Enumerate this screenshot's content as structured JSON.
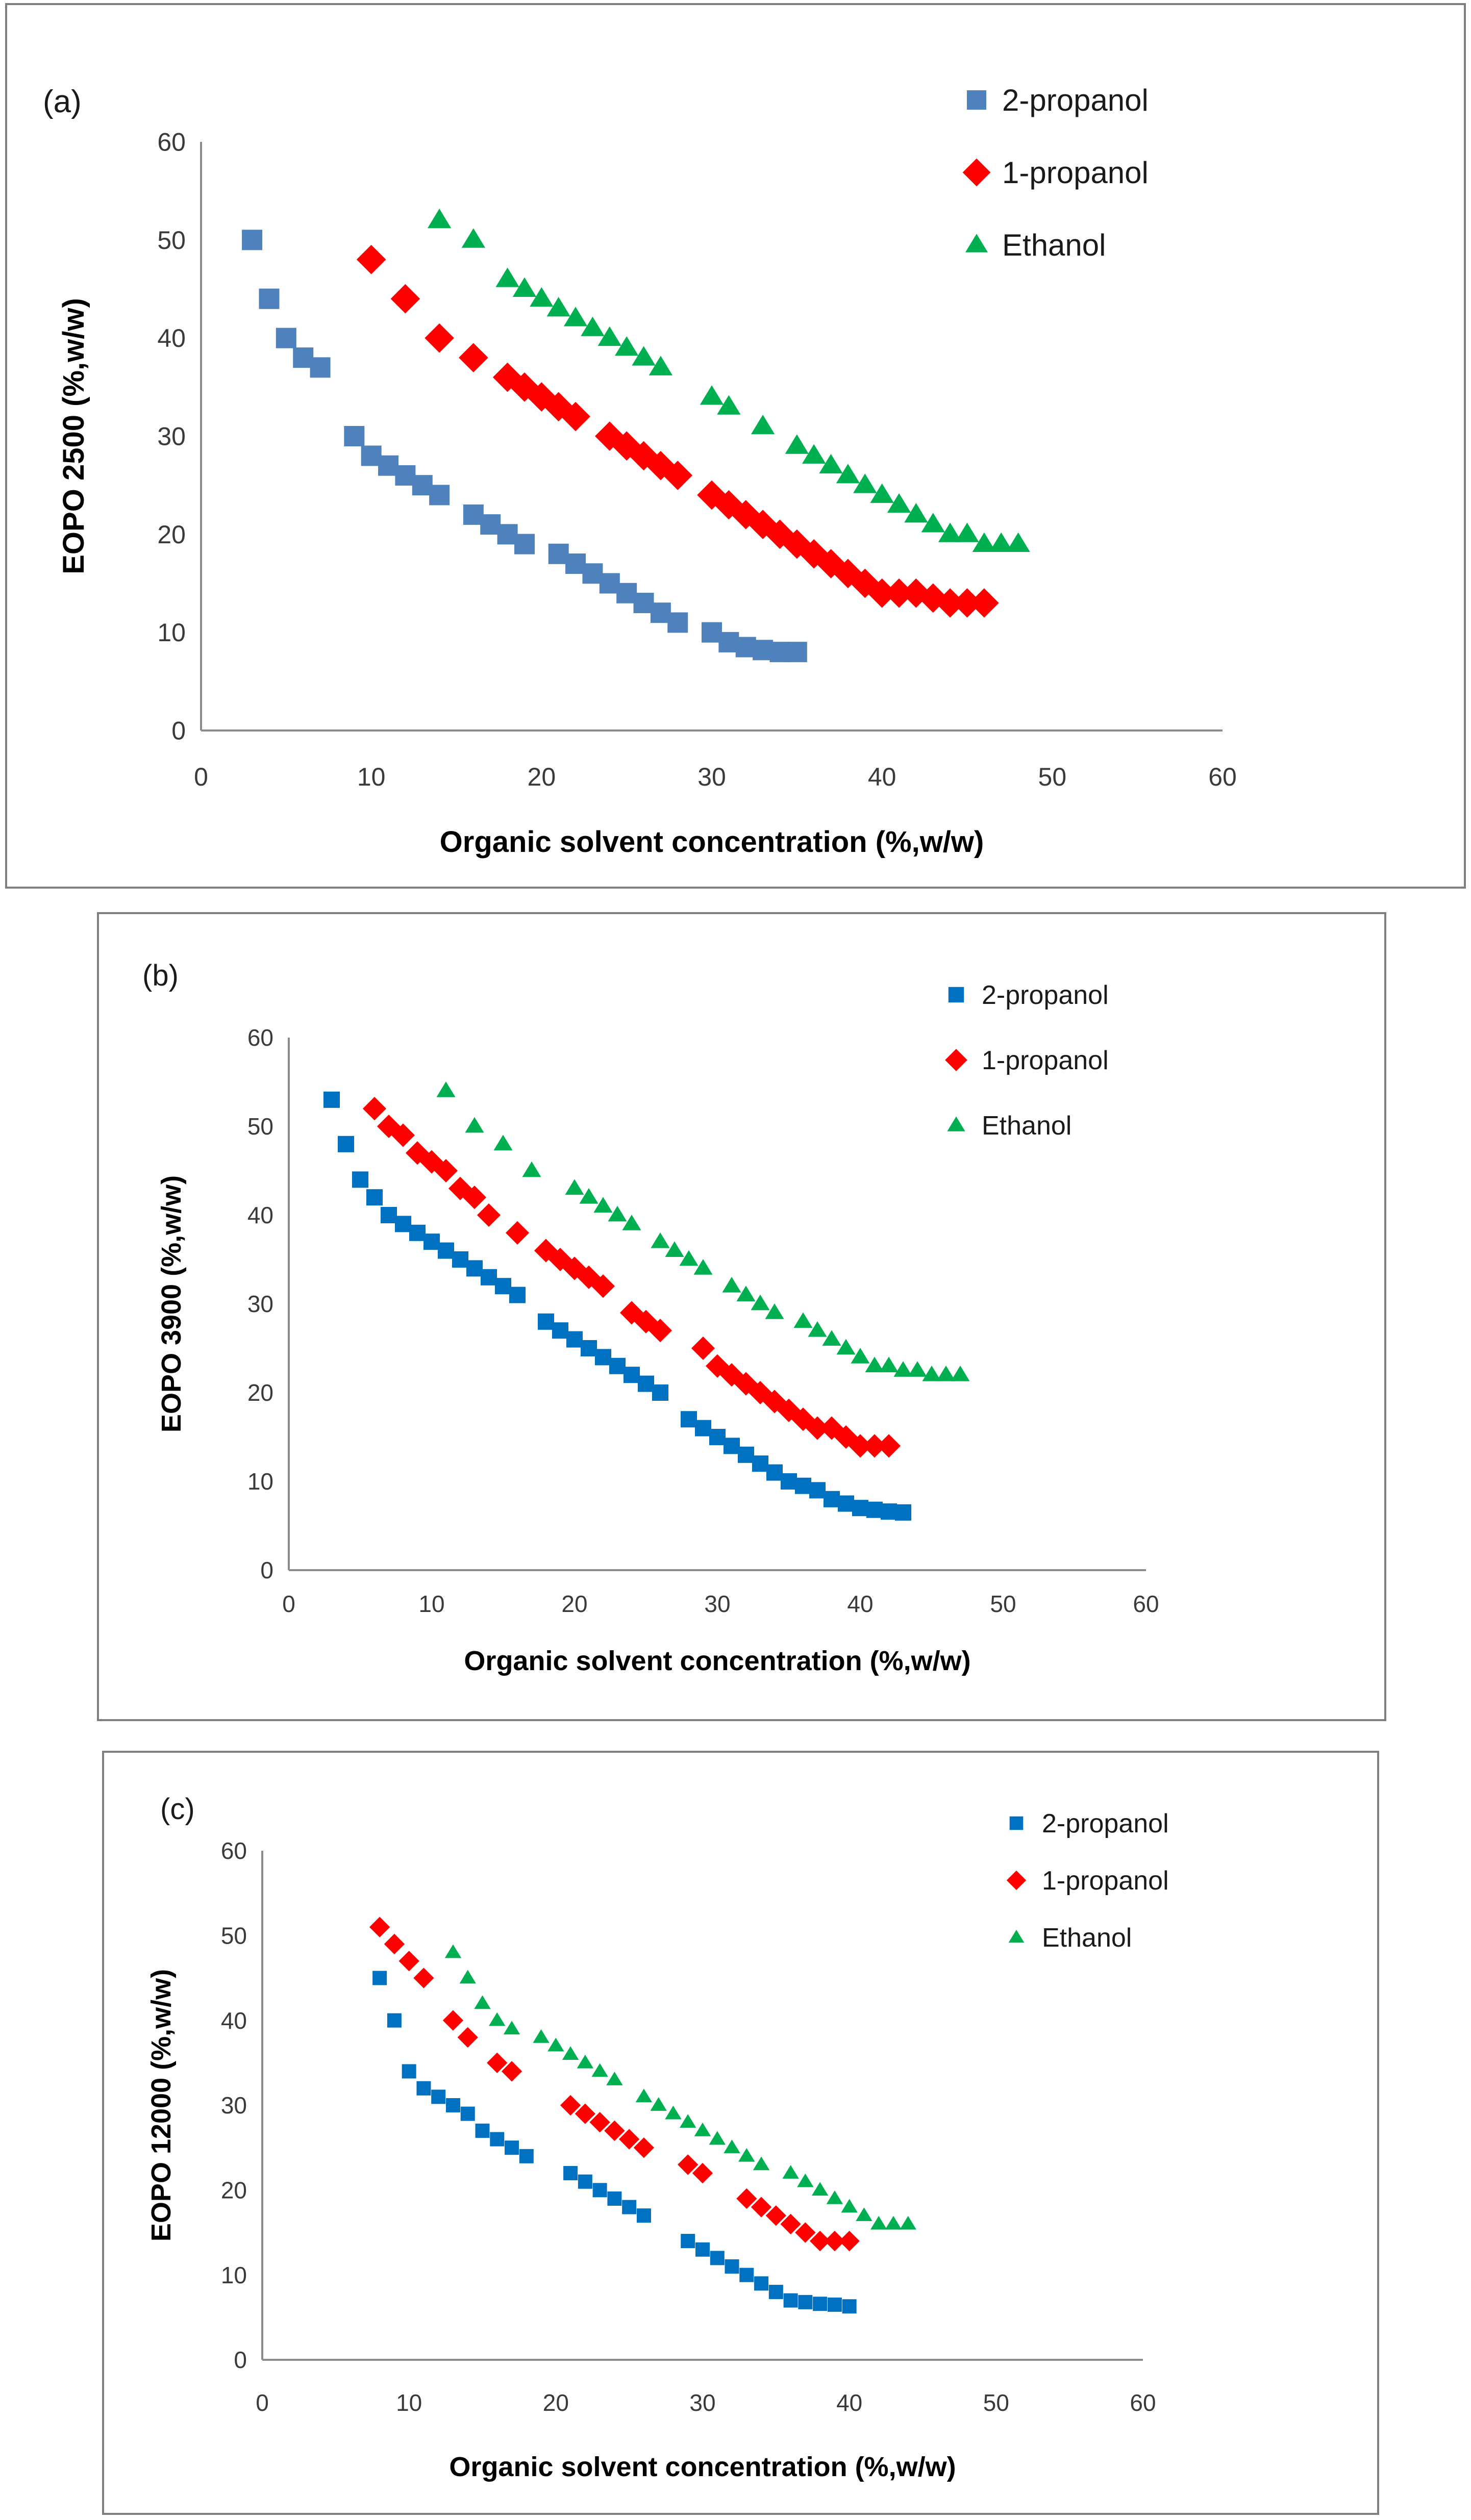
{
  "chart_data": [
    {
      "type": "scatter",
      "panel_label": "(a)",
      "xlabel": "Organic solvent concentration (%,w/w)",
      "ylabel": "EOPO 2500 (%,w/w)",
      "xlim": [
        0,
        60
      ],
      "ylim": [
        0,
        60
      ],
      "xticks": [
        "0",
        "10",
        "20",
        "30",
        "40",
        "50",
        "60"
      ],
      "yticks": [
        "0",
        "10",
        "20",
        "30",
        "40",
        "50",
        "60"
      ],
      "grid": false,
      "legend_position": "top-right",
      "series": [
        {
          "name": "2-propanol",
          "marker": "square",
          "color": "#4f81bd",
          "x": [
            3,
            4,
            5,
            6,
            7,
            9,
            10,
            11,
            12,
            13,
            14,
            16,
            17,
            18,
            19,
            21,
            22,
            23,
            24,
            25,
            26,
            27,
            28,
            30,
            31,
            32,
            33,
            34,
            35
          ],
          "y": [
            50,
            44,
            40,
            38,
            37,
            30,
            28,
            27,
            26,
            25,
            24,
            22,
            21,
            20,
            19,
            18,
            17,
            16,
            15,
            14,
            13,
            12,
            11,
            10,
            9,
            8.5,
            8.2,
            8,
            8
          ]
        },
        {
          "name": "1-propanol",
          "marker": "diamond",
          "color": "#ff0000",
          "x": [
            10,
            12,
            14,
            16,
            18,
            19,
            20,
            21,
            22,
            24,
            25,
            26,
            27,
            28,
            30,
            31,
            32,
            33,
            34,
            35,
            36,
            37,
            38,
            39,
            40,
            41,
            42,
            43,
            44,
            45,
            46
          ],
          "y": [
            48,
            44,
            40,
            38,
            36,
            35,
            34,
            33,
            32,
            30,
            29,
            28,
            27,
            26,
            24,
            23,
            22,
            21,
            20,
            19,
            18,
            17,
            16,
            15,
            14,
            14,
            14,
            13.5,
            13,
            13,
            13
          ]
        },
        {
          "name": "Ethanol",
          "marker": "triangle",
          "color": "#00b050",
          "x": [
            14,
            16,
            18,
            19,
            20,
            21,
            22,
            23,
            24,
            25,
            26,
            27,
            30,
            31,
            33,
            35,
            36,
            37,
            38,
            39,
            40,
            41,
            42,
            43,
            44,
            45,
            46,
            47,
            48
          ],
          "y": [
            52,
            50,
            46,
            45,
            44,
            43,
            42,
            41,
            40,
            39,
            38,
            37,
            34,
            33,
            31,
            29,
            28,
            27,
            26,
            25,
            24,
            23,
            22,
            21,
            20,
            20,
            19,
            19,
            19
          ]
        }
      ]
    },
    {
      "type": "scatter",
      "panel_label": "(b)",
      "xlabel": "Organic solvent concentration (%,w/w)",
      "ylabel": "EOPO 3900 (%,w/w)",
      "xlim": [
        0,
        60
      ],
      "ylim": [
        0,
        60
      ],
      "xticks": [
        "0",
        "10",
        "20",
        "30",
        "40",
        "50",
        "60"
      ],
      "yticks": [
        "0",
        "10",
        "20",
        "30",
        "40",
        "50",
        "60"
      ],
      "grid": false,
      "legend_position": "top-right",
      "series": [
        {
          "name": "2-propanol",
          "marker": "square",
          "color": "#0070c0",
          "x": [
            3,
            4,
            5,
            6,
            7,
            8,
            9,
            10,
            11,
            12,
            13,
            14,
            15,
            16,
            18,
            19,
            20,
            21,
            22,
            23,
            24,
            25,
            26,
            28,
            29,
            30,
            31,
            32,
            33,
            34,
            35,
            36,
            37,
            38,
            39,
            40,
            41,
            42,
            43
          ],
          "y": [
            53,
            48,
            44,
            42,
            40,
            39,
            38,
            37,
            36,
            35,
            34,
            33,
            32,
            31,
            28,
            27,
            26,
            25,
            24,
            23,
            22,
            21,
            20,
            17,
            16,
            15,
            14,
            13,
            12,
            11,
            10,
            9.5,
            9,
            8,
            7.5,
            7,
            6.8,
            6.6,
            6.5
          ]
        },
        {
          "name": "1-propanol",
          "marker": "diamond",
          "color": "#ff0000",
          "x": [
            6,
            7,
            8,
            9,
            10,
            11,
            12,
            13,
            14,
            16,
            18,
            19,
            20,
            21,
            22,
            24,
            25,
            26,
            29,
            30,
            31,
            32,
            33,
            34,
            35,
            36,
            37,
            38,
            39,
            40,
            41,
            42
          ],
          "y": [
            52,
            50,
            49,
            47,
            46,
            45,
            43,
            42,
            40,
            38,
            36,
            35,
            34,
            33,
            32,
            29,
            28,
            27,
            25,
            23,
            22,
            21,
            20,
            19,
            18,
            17,
            16,
            16,
            15,
            14,
            14,
            14
          ]
        },
        {
          "name": "Ethanol",
          "marker": "triangle",
          "color": "#00b050",
          "x": [
            11,
            13,
            15,
            17,
            20,
            21,
            22,
            23,
            24,
            26,
            27,
            28,
            29,
            31,
            32,
            33,
            34,
            36,
            37,
            38,
            39,
            40,
            41,
            42,
            43,
            44,
            45,
            46,
            47
          ],
          "y": [
            54,
            50,
            48,
            45,
            43,
            42,
            41,
            40,
            39,
            37,
            36,
            35,
            34,
            32,
            31,
            30,
            29,
            28,
            27,
            26,
            25,
            24,
            23,
            23,
            22.5,
            22.5,
            22,
            22,
            22
          ]
        }
      ]
    },
    {
      "type": "scatter",
      "panel_label": "(c)",
      "xlabel": "Organic solvent concentration (%,w/w)",
      "ylabel": "EOPO 12000 (%,w/w)",
      "xlim": [
        0,
        60
      ],
      "ylim": [
        0,
        60
      ],
      "xticks": [
        "0",
        "10",
        "20",
        "30",
        "40",
        "50",
        "60"
      ],
      "yticks": [
        "0",
        "10",
        "20",
        "30",
        "40",
        "50",
        "60"
      ],
      "grid": false,
      "legend_position": "top-right",
      "series": [
        {
          "name": "2-propanol",
          "marker": "square",
          "color": "#0070c0",
          "x": [
            8,
            9,
            10,
            11,
            12,
            13,
            14,
            15,
            16,
            17,
            18,
            21,
            22,
            23,
            24,
            25,
            26,
            29,
            30,
            31,
            32,
            33,
            34,
            35,
            36,
            37,
            38,
            39,
            40
          ],
          "y": [
            45,
            40,
            34,
            32,
            31,
            30,
            29,
            27,
            26,
            25,
            24,
            22,
            21,
            20,
            19,
            18,
            17,
            14,
            13,
            12,
            11,
            10,
            9,
            8,
            7,
            6.8,
            6.6,
            6.5,
            6.3
          ]
        },
        {
          "name": "1-propanol",
          "marker": "diamond",
          "color": "#ff0000",
          "x": [
            8,
            9,
            10,
            11,
            13,
            14,
            16,
            17,
            21,
            22,
            23,
            24,
            25,
            26,
            29,
            30,
            33,
            34,
            35,
            36,
            37,
            38,
            39,
            40
          ],
          "y": [
            51,
            49,
            47,
            45,
            40,
            38,
            35,
            34,
            30,
            29,
            28,
            27,
            26,
            25,
            23,
            22,
            19,
            18,
            17,
            16,
            15,
            14,
            14,
            14
          ]
        },
        {
          "name": "Ethanol",
          "marker": "triangle",
          "color": "#00b050",
          "x": [
            13,
            14,
            15,
            16,
            17,
            19,
            20,
            21,
            22,
            23,
            24,
            26,
            27,
            28,
            29,
            30,
            31,
            32,
            33,
            34,
            36,
            37,
            38,
            39,
            40,
            41,
            42,
            43,
            44
          ],
          "y": [
            48,
            45,
            42,
            40,
            39,
            38,
            37,
            36,
            35,
            34,
            33,
            31,
            30,
            29,
            28,
            27,
            26,
            25,
            24,
            23,
            22,
            21,
            20,
            19,
            18,
            17,
            16,
            16,
            16
          ]
        }
      ]
    }
  ]
}
